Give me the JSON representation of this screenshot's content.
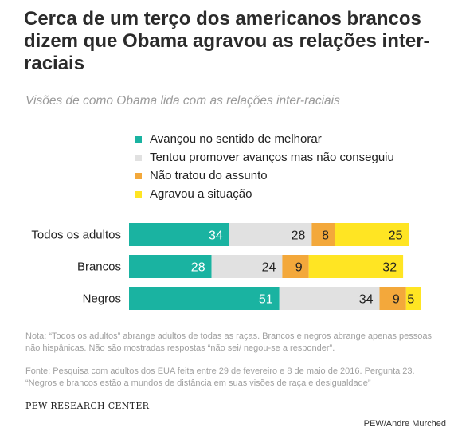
{
  "title": "Cerca de um terço dos americanos brancos dizem que Obama agravou as relações inter-raciais",
  "subtitle": "Visões de como Obama lida com as relações inter-raciais",
  "legend": [
    {
      "label": "Avançou no sentido de melhorar",
      "color": "#1ab3a1"
    },
    {
      "label": "Tentou promover avanços mas não conseguiu",
      "color": "#e1e1e1"
    },
    {
      "label": "Não tratou do assunto",
      "color": "#f3a83b"
    },
    {
      "label": "Agravou a situação",
      "color": "#ffe523"
    }
  ],
  "chart_data": {
    "type": "bar",
    "orientation": "horizontal",
    "stacked": true,
    "categories": [
      "Todos os adultos",
      "Brancos",
      "Negros"
    ],
    "series": [
      {
        "name": "Avançou no sentido de melhorar",
        "values": [
          34,
          28,
          51
        ],
        "color": "#1ab3a1",
        "label_color": "#ffffff"
      },
      {
        "name": "Tentou promover avanços mas não conseguiu",
        "values": [
          28,
          24,
          34
        ],
        "color": "#e1e1e1",
        "label_color": "#222222"
      },
      {
        "name": "Não tratou do assunto",
        "values": [
          8,
          9,
          9
        ],
        "color": "#f3a83b",
        "label_color": "#222222"
      },
      {
        "name": "Agravou a situação",
        "values": [
          25,
          32,
          5
        ],
        "color": "#ffe523",
        "label_color": "#222222"
      }
    ],
    "xlim": [
      0,
      100
    ],
    "grid": false
  },
  "note": "Nota: “Todos os adultos” abrange adultos de todas as raças. Brancos e negros abrange apenas pessoas não hispânicas. Não são mostradas respostas “não sei/ negou-se a responder”.",
  "source": "Fonte: Pesquisa com adultos dos EUA feita entre 29 de fevereiro e 8 de maio de 2016. Pergunta 23. “Negros e brancos estão a mundos de distância em suas visões de raça e desigualdade”",
  "org": "PEW RESEARCH CENTER",
  "credit": "PEW/Andre Murched"
}
